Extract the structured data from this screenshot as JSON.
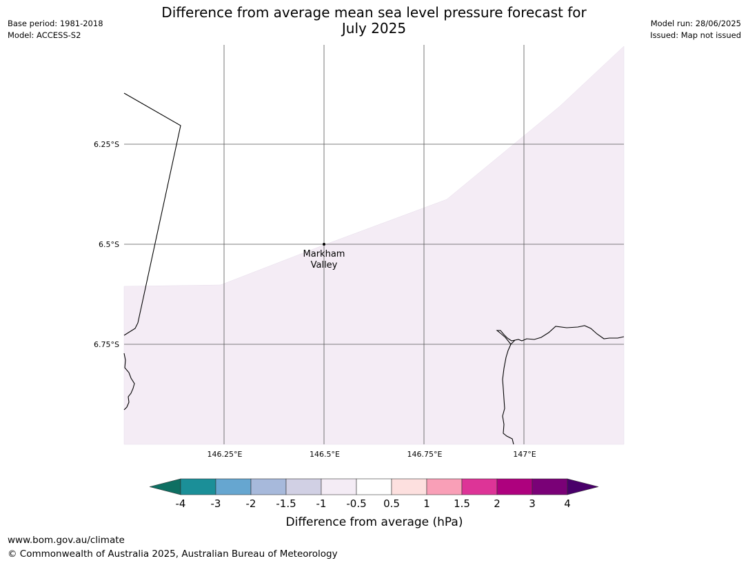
{
  "header": {
    "title_line1": "Difference from average mean sea level pressure forecast for",
    "title_line2": "July 2025",
    "base_period": "Base period: 1981-2018",
    "model": "Model: ACCESS-S2",
    "model_run": "Model run: 28/06/2025",
    "issued": "Issued: Map not issued"
  },
  "map": {
    "lat_labels": [
      "6.25°S",
      "6.5°S",
      "6.75°S"
    ],
    "lon_labels": [
      "146.25°E",
      "146.5°E",
      "146.75°E",
      "147°E"
    ],
    "place_label_line1": "Markham",
    "place_label_line2": "Valley",
    "shaded_class": "-1 to -0.5 hPa",
    "shaded_color": "#f4ecf5"
  },
  "colorbar": {
    "label": "Difference from average (hPa)",
    "ticks": [
      "-4",
      "-3",
      "-2",
      "-1.5",
      "-1",
      "-0.5",
      "0.5",
      "1",
      "1.5",
      "2",
      "3",
      "4"
    ],
    "colors": [
      "#0e6f62",
      "#1b8f98",
      "#66a6d0",
      "#a7b9db",
      "#d1d0e4",
      "#f4ecf5",
      "#ffffff",
      "#fde0df",
      "#f99fb7",
      "#dd3497",
      "#ae017e",
      "#7a0177",
      "#49006a"
    ]
  },
  "footer": {
    "url": "www.bom.gov.au/climate",
    "copyright": "© Commonwealth of Australia 2025, Australian Bureau of Meteorology"
  }
}
